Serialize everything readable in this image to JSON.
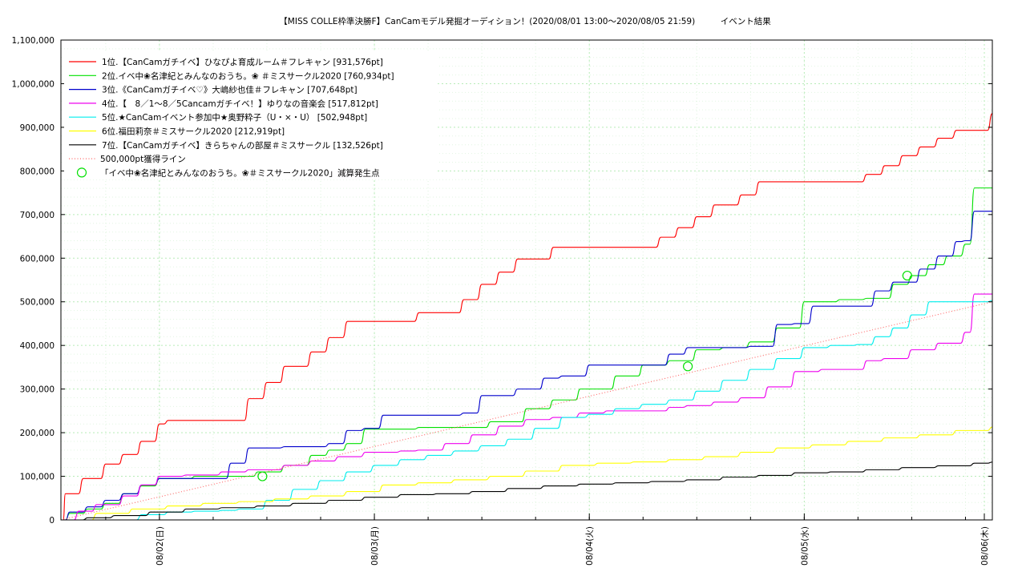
{
  "chart_data": {
    "type": "line",
    "title": "【MISS COLLE枠準決勝F】CanCamモデル発掘オーディション！(2020/08/01 13:00〜2020/08/05 21:59)　　　イベント結果",
    "xlabel": "",
    "ylabel": "",
    "xlim": [
      0,
      104
    ],
    "ylim": [
      0,
      1100000
    ],
    "y_ticks": [
      0,
      100000,
      200000,
      300000,
      400000,
      500000,
      600000,
      700000,
      800000,
      900000,
      1000000,
      1100000
    ],
    "y_tick_labels": [
      "0",
      "100,000",
      "200,000",
      "300,000",
      "400,000",
      "500,000",
      "600,000",
      "700,000",
      "800,000",
      "900,000",
      "1,000,000",
      "1,100,000"
    ],
    "x_tick_labels": [
      {
        "x": 11,
        "label": "08/02(日)"
      },
      {
        "x": 35,
        "label": "08/03(月)"
      },
      {
        "x": 59,
        "label": "08/04(火)"
      },
      {
        "x": 83,
        "label": "08/05(水)"
      },
      {
        "x": 107,
        "label": "08/06(木)"
      }
    ],
    "grid": true,
    "legend_position": "top-left",
    "series": [
      {
        "name": "1位.【CanCamガチイベ】ひなぴよ育成ルーム＃フレキャン [931,576pt]",
        "color": "#ff0000",
        "x": [
          0,
          0.5,
          2.5,
          5,
          7,
          9,
          11,
          12,
          20,
          21,
          23,
          25,
          28,
          30,
          32,
          34,
          38,
          40,
          45,
          47,
          49,
          51,
          53,
          55,
          58,
          61,
          67,
          69,
          71,
          73,
          76,
          78,
          82,
          84,
          90,
          92,
          94,
          96,
          98,
          100,
          104
        ],
        "y": [
          0,
          60000,
          95000,
          128000,
          150000,
          180000,
          220000,
          228000,
          228000,
          278000,
          315000,
          352000,
          385000,
          418000,
          455000,
          455000,
          455000,
          475000,
          505000,
          540000,
          568000,
          598000,
          598000,
          625000,
          625000,
          625000,
          648000,
          670000,
          695000,
          722000,
          745000,
          775000,
          775000,
          775000,
          792000,
          812000,
          835000,
          855000,
          875000,
          893000,
          931576
        ]
      },
      {
        "name": "2位.イベ中❀名津紀とみんなのおうち。❀ ＃ミスサークル2020 [760,934pt]",
        "color": "#00e000",
        "x": [
          0,
          1,
          3,
          5,
          7,
          9,
          11,
          15,
          18,
          22,
          25,
          28,
          30,
          32,
          34,
          40,
          44,
          48,
          52,
          55,
          58,
          62,
          65,
          68,
          71,
          74,
          77,
          80,
          83,
          87,
          90,
          93,
          95,
          97,
          99,
          101,
          102,
          104
        ],
        "y": [
          0,
          15000,
          25000,
          38000,
          60000,
          78000,
          95000,
          100000,
          100000,
          110000,
          125000,
          148000,
          160000,
          175000,
          208000,
          212000,
          212000,
          225000,
          255000,
          275000,
          300000,
          330000,
          355000,
          365000,
          390000,
          395000,
          408000,
          440000,
          500000,
          505000,
          508000,
          540000,
          560000,
          585000,
          605000,
          632000,
          760934,
          760934
        ]
      },
      {
        "name": "3位.《CanCamガチイベ♡》大嶋紗也佳＃フレキャン [707,648pt]",
        "color": "#0000cc",
        "x": [
          0,
          1,
          3,
          5,
          7,
          9,
          11,
          17,
          19,
          21,
          25,
          30,
          32,
          34,
          36,
          40,
          42,
          45,
          47,
          49,
          51,
          54,
          56,
          59,
          63,
          66,
          68,
          70,
          73,
          77,
          80,
          82,
          84,
          89,
          91,
          93,
          96,
          98,
          100,
          101,
          102,
          104
        ],
        "y": [
          0,
          18000,
          30000,
          45000,
          60000,
          80000,
          95000,
          95000,
          130000,
          165000,
          168000,
          175000,
          205000,
          210000,
          240000,
          240000,
          240000,
          245000,
          285000,
          285000,
          300000,
          325000,
          330000,
          355000,
          355000,
          355000,
          380000,
          395000,
          395000,
          398000,
          448000,
          450000,
          490000,
          490000,
          525000,
          545000,
          575000,
          605000,
          638000,
          640000,
          707648,
          707648
        ]
      },
      {
        "name": "4位.【　8／1〜8／5Cancamガチイベ！】ゆりなの音楽会 [517,812pt]",
        "color": "#ee00ee",
        "x": [
          0,
          2,
          4,
          7,
          9,
          11,
          14,
          18,
          21,
          25,
          28,
          31,
          34,
          38,
          40,
          43,
          46,
          49,
          52,
          55,
          58,
          61,
          64,
          68,
          70,
          73,
          76,
          79,
          82,
          85,
          90,
          92,
          95,
          98,
          101,
          102,
          104
        ],
        "y": [
          0,
          20000,
          35000,
          55000,
          80000,
          100000,
          103000,
          110000,
          115000,
          125000,
          135000,
          145000,
          155000,
          158000,
          160000,
          175000,
          195000,
          215000,
          230000,
          235000,
          245000,
          250000,
          250000,
          258000,
          262000,
          270000,
          280000,
          305000,
          340000,
          345000,
          365000,
          370000,
          390000,
          405000,
          430000,
          517812,
          517812
        ]
      },
      {
        "name": "5位.★CanCamイベント参加中★奥野粋子（U・×・U） [502,948pt]",
        "color": "#00eeee",
        "x": [
          0,
          7,
          9,
          12,
          15,
          18,
          20,
          23,
          26,
          29,
          32,
          35,
          38,
          41,
          44,
          47,
          50,
          53,
          56,
          59,
          62,
          65,
          68,
          71,
          74,
          77,
          80,
          83,
          86,
          89,
          91,
          93,
          95,
          97,
          104
        ],
        "y": [
          0,
          0,
          12000,
          18000,
          20000,
          22000,
          25000,
          45000,
          70000,
          90000,
          110000,
          125000,
          138000,
          148000,
          158000,
          170000,
          185000,
          210000,
          235000,
          242000,
          255000,
          265000,
          275000,
          295000,
          320000,
          345000,
          370000,
          395000,
          400000,
          402000,
          420000,
          440000,
          470000,
          500000,
          502948
        ]
      },
      {
        "name": "6位.福田莉奈＃ミスサークル2020 [212,919pt]",
        "color": "#ffff00",
        "x": [
          0,
          4,
          8,
          12,
          16,
          20,
          24,
          28,
          32,
          36,
          40,
          44,
          48,
          52,
          56,
          60,
          64,
          68,
          72,
          76,
          80,
          84,
          88,
          92,
          96,
          100,
          104
        ],
        "y": [
          0,
          15000,
          25000,
          32000,
          38000,
          42000,
          48000,
          55000,
          65000,
          80000,
          85000,
          92000,
          100000,
          112000,
          125000,
          130000,
          133000,
          138000,
          145000,
          155000,
          165000,
          172000,
          180000,
          188000,
          195000,
          205000,
          212919
        ]
      },
      {
        "name": "7位.【CanCamガチイベ】きらちゃんの部屋＃ミスサークル [132,526pt]",
        "color": "#000000",
        "x": [
          0,
          3,
          6,
          10,
          14,
          18,
          22,
          26,
          30,
          34,
          38,
          42,
          46,
          50,
          54,
          58,
          62,
          66,
          70,
          74,
          78,
          82,
          86,
          90,
          94,
          98,
          102,
          104
        ],
        "y": [
          0,
          5000,
          10000,
          18000,
          25000,
          28000,
          32000,
          38000,
          45000,
          52000,
          58000,
          60000,
          65000,
          72000,
          78000,
          82000,
          85000,
          88000,
          92000,
          98000,
          102000,
          108000,
          110000,
          115000,
          120000,
          124000,
          130000,
          132526
        ]
      },
      {
        "name": "500,000pt獲得ライン",
        "color": "#ff6666",
        "dotted": true,
        "x": [
          0,
          104
        ],
        "y": [
          0,
          500000
        ]
      }
    ],
    "markers": {
      "name": "「イベ中❀名津紀とみんなのおうち。❀＃ミスサークル2020」減算発生点",
      "color": "#00e000",
      "points": [
        {
          "x": 22.5,
          "y": 100000
        },
        {
          "x": 70,
          "y": 352000
        },
        {
          "x": 94.5,
          "y": 560000
        }
      ]
    }
  }
}
